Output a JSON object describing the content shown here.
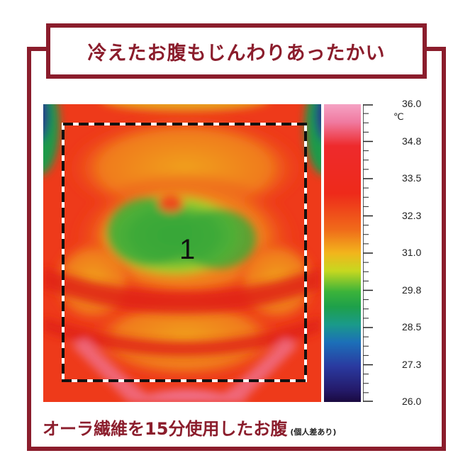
{
  "title": "冷えたお腹もじんわりあったかい",
  "caption": {
    "main": "オーラ繊維を15分使用したお腹",
    "note": "(個人差あり)"
  },
  "thermal_image": {
    "region_label": "1"
  },
  "scale": {
    "unit": "℃",
    "labels": [
      "36.0",
      "34.8",
      "33.5",
      "32.3",
      "31.0",
      "29.8",
      "28.5",
      "27.3",
      "26.0"
    ]
  },
  "colors": {
    "frame": "#8b1d2c",
    "hot": "#ee2a1a",
    "warm": "#f06a1a",
    "cool": "#3bb33a",
    "cold": "#241a6a"
  }
}
